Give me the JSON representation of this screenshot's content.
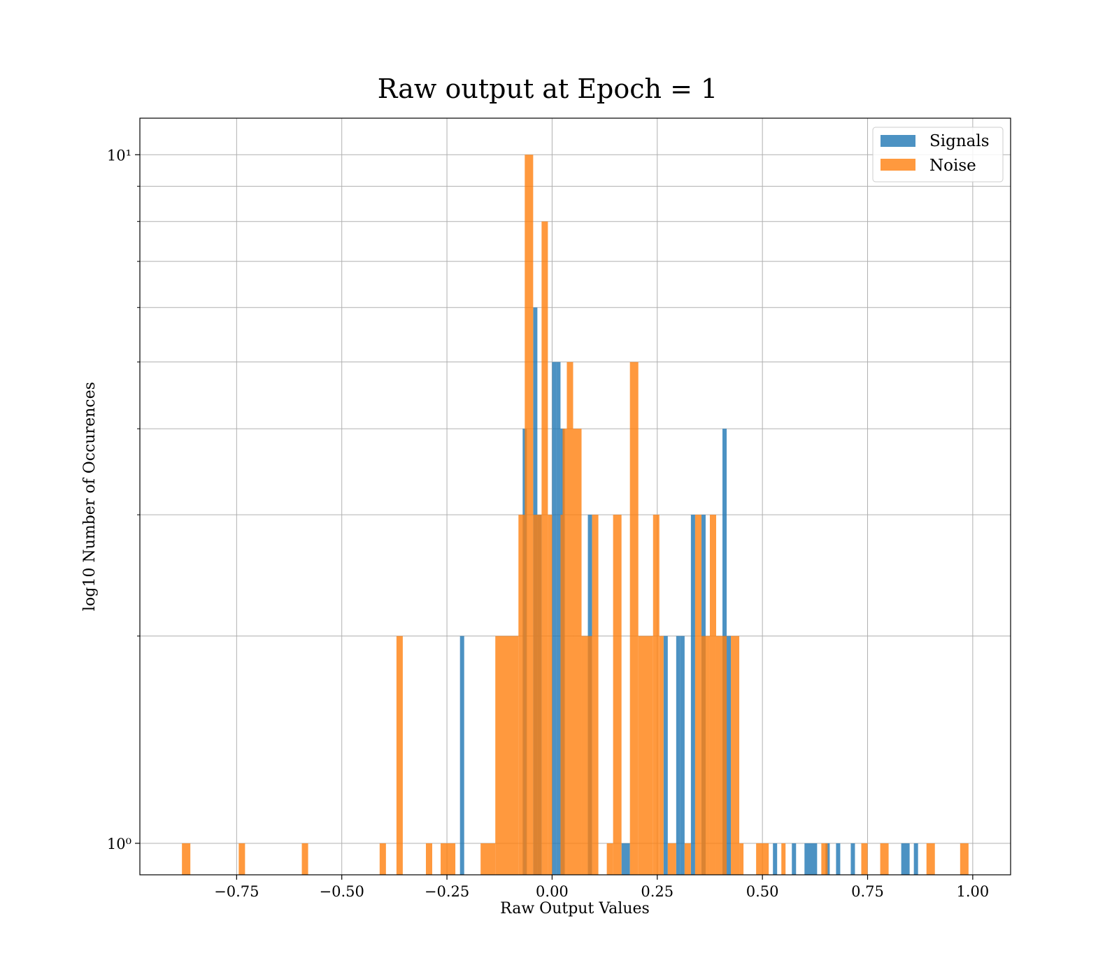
{
  "chart_data": {
    "type": "bar",
    "title": "Raw output at Epoch = 1",
    "xlabel": "Raw Output Values",
    "ylabel": "log10 Number of Occurences",
    "yscale": "log",
    "xlim": [
      -0.98,
      1.09
    ],
    "ylim": [
      0.9,
      11.3
    ],
    "xticks": [
      -0.75,
      -0.5,
      -0.25,
      0.0,
      0.25,
      0.5,
      0.75,
      1.0
    ],
    "xtick_labels": [
      "−0.75",
      "−0.50",
      "−0.25",
      "0.00",
      "0.25",
      "0.50",
      "0.75",
      "1.00"
    ],
    "yticks_major": [
      1,
      10
    ],
    "ytick_labels": [
      "10⁰",
      "10¹"
    ],
    "yticks_minor": [
      2,
      3,
      4,
      5,
      6,
      7,
      8,
      9
    ],
    "grid": true,
    "legend_position": "top-right",
    "series": [
      {
        "name": "Signals",
        "color": "#1f77b4",
        "bars": [
          [
            -0.219,
            -0.209,
            2
          ],
          [
            -0.07,
            -0.06,
            4
          ],
          [
            -0.045,
            -0.035,
            6
          ],
          [
            -0.035,
            -0.025,
            3
          ],
          [
            0.0,
            0.01,
            5
          ],
          [
            0.01,
            0.02,
            5
          ],
          [
            0.02,
            0.03,
            4
          ],
          [
            0.085,
            0.095,
            3
          ],
          [
            0.165,
            0.185,
            1
          ],
          [
            0.265,
            0.275,
            2
          ],
          [
            0.295,
            0.305,
            2
          ],
          [
            0.305,
            0.315,
            2
          ],
          [
            0.33,
            0.34,
            3
          ],
          [
            0.355,
            0.365,
            3
          ],
          [
            0.405,
            0.415,
            4
          ],
          [
            0.415,
            0.425,
            2
          ],
          [
            0.525,
            0.535,
            1
          ],
          [
            0.57,
            0.58,
            1
          ],
          [
            0.6,
            0.63,
            1
          ],
          [
            0.65,
            0.66,
            1
          ],
          [
            0.675,
            0.685,
            1
          ],
          [
            0.71,
            0.72,
            1
          ],
          [
            0.83,
            0.85,
            1
          ],
          [
            0.86,
            0.87,
            1
          ]
        ]
      },
      {
        "name": "Noise",
        "color": "#ff7f0e",
        "bars": [
          [
            -0.88,
            -0.86,
            1
          ],
          [
            -0.745,
            -0.73,
            1
          ],
          [
            -0.595,
            -0.58,
            1
          ],
          [
            -0.41,
            -0.395,
            1
          ],
          [
            -0.37,
            -0.355,
            2
          ],
          [
            -0.3,
            -0.285,
            1
          ],
          [
            -0.265,
            -0.23,
            1
          ],
          [
            -0.17,
            -0.135,
            1
          ],
          [
            -0.135,
            -0.08,
            2
          ],
          [
            -0.08,
            -0.065,
            3
          ],
          [
            -0.065,
            -0.045,
            10
          ],
          [
            -0.045,
            -0.025,
            3
          ],
          [
            -0.025,
            -0.01,
            8
          ],
          [
            -0.01,
            0.0,
            3
          ],
          [
            0.02,
            0.025,
            3
          ],
          [
            0.025,
            0.035,
            4
          ],
          [
            0.035,
            0.05,
            5
          ],
          [
            0.05,
            0.07,
            4
          ],
          [
            0.07,
            0.085,
            2
          ],
          [
            0.085,
            0.095,
            2
          ],
          [
            0.095,
            0.11,
            3
          ],
          [
            0.13,
            0.145,
            1
          ],
          [
            0.145,
            0.165,
            3
          ],
          [
            0.185,
            0.205,
            5
          ],
          [
            0.205,
            0.24,
            2
          ],
          [
            0.24,
            0.255,
            3
          ],
          [
            0.255,
            0.265,
            2
          ],
          [
            0.275,
            0.295,
            1
          ],
          [
            0.315,
            0.33,
            1
          ],
          [
            0.34,
            0.355,
            3
          ],
          [
            0.355,
            0.375,
            2
          ],
          [
            0.375,
            0.39,
            3
          ],
          [
            0.39,
            0.405,
            2
          ],
          [
            0.405,
            0.415,
            2
          ],
          [
            0.425,
            0.445,
            2
          ],
          [
            0.445,
            0.455,
            1
          ],
          [
            0.485,
            0.515,
            1
          ],
          [
            0.545,
            0.555,
            1
          ],
          [
            0.64,
            0.655,
            1
          ],
          [
            0.735,
            0.75,
            1
          ],
          [
            0.78,
            0.8,
            1
          ],
          [
            0.89,
            0.91,
            1
          ],
          [
            0.97,
            0.99,
            1
          ]
        ]
      }
    ]
  }
}
